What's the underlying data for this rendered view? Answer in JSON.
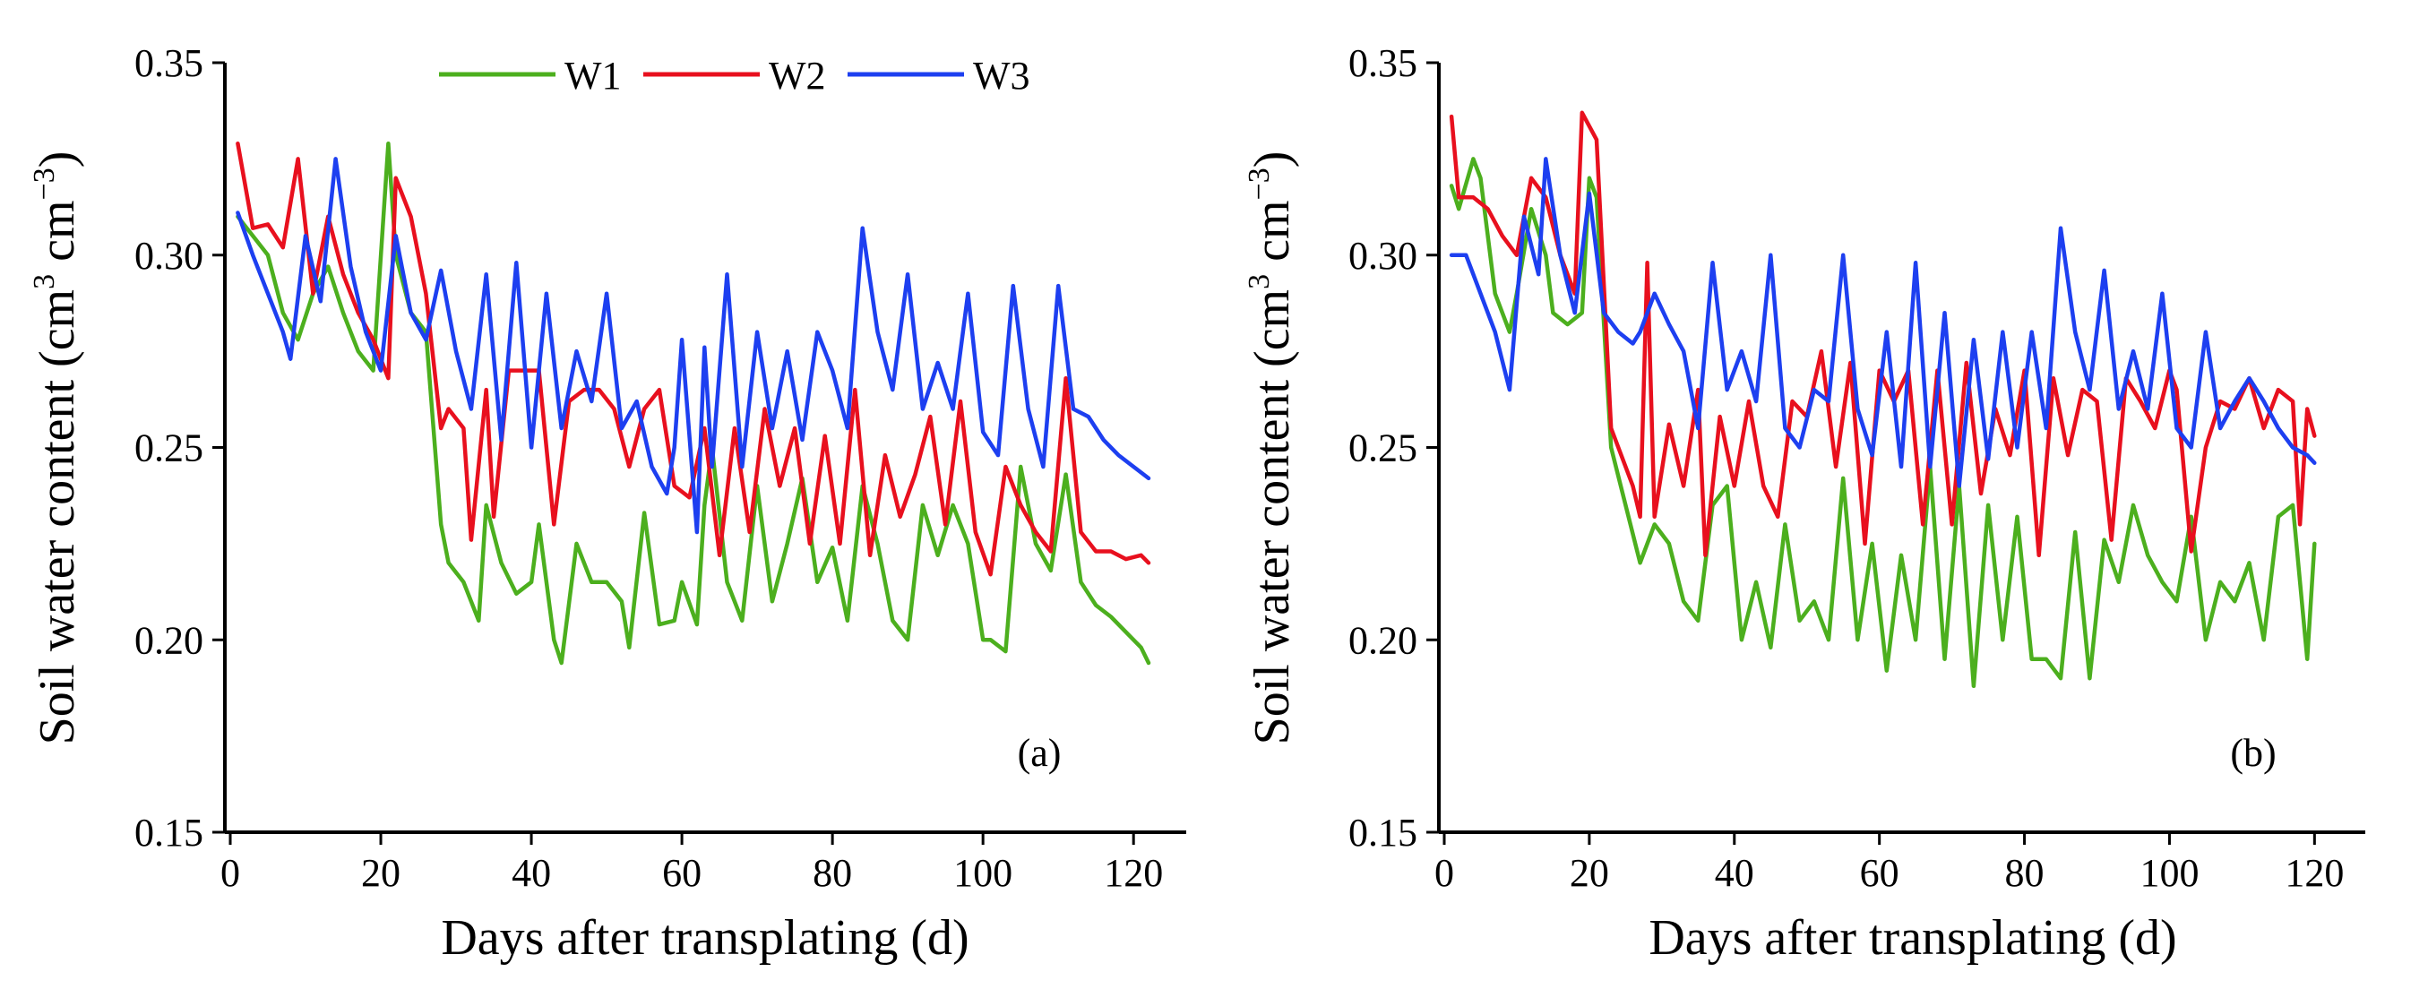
{
  "colors": {
    "W1": "#4caf1e",
    "W2": "#e8101e",
    "W3": "#1d3ff0"
  },
  "legend": [
    {
      "key": "W1",
      "label": "W1"
    },
    {
      "key": "W2",
      "label": "W2"
    },
    {
      "key": "W3",
      "label": "W3"
    }
  ],
  "chart_data": [
    {
      "type": "line",
      "panel_label": "(a)",
      "xlabel": "Days after transplating (d)",
      "ylabel_main": "Soil water content (cm",
      "ylabel_unit": "cm",
      "ylabel_sup1": "3",
      "ylabel_sup2": "−3",
      "ylabel_close": ")",
      "xlim": [
        0,
        127
      ],
      "ylim": [
        0.15,
        0.35
      ],
      "xticks": [
        0,
        20,
        40,
        60,
        80,
        100,
        120
      ],
      "xtick_labels": [
        "0",
        "20",
        "40",
        "60",
        "80",
        "100",
        "120"
      ],
      "yticks": [
        0.15,
        0.2,
        0.25,
        0.3,
        0.35
      ],
      "ytick_labels": [
        "0.15",
        "0.20",
        "0.25",
        "0.30",
        "0.35"
      ],
      "legend_position": "top-center",
      "series": [
        {
          "name": "W1",
          "x": [
            1,
            3,
            5,
            7,
            9,
            11,
            13,
            15,
            17,
            19,
            21,
            22,
            24,
            26,
            28,
            29,
            31,
            33,
            34,
            36,
            38,
            40,
            41,
            43,
            44,
            46,
            48,
            50,
            52,
            53,
            55,
            57,
            59,
            60,
            62,
            63,
            64,
            66,
            68,
            70,
            72,
            74,
            76,
            78,
            80,
            82,
            84,
            86,
            88,
            90,
            92,
            94,
            96,
            98,
            100,
            101,
            103,
            105,
            107,
            109,
            111,
            113,
            115,
            117,
            119,
            121,
            122
          ],
          "values": [
            0.31,
            0.305,
            0.3,
            0.285,
            0.278,
            0.29,
            0.297,
            0.285,
            0.275,
            0.27,
            0.329,
            0.3,
            0.285,
            0.28,
            0.23,
            0.22,
            0.215,
            0.205,
            0.235,
            0.22,
            0.212,
            0.215,
            0.23,
            0.2,
            0.194,
            0.225,
            0.215,
            0.215,
            0.21,
            0.198,
            0.233,
            0.204,
            0.205,
            0.215,
            0.204,
            0.235,
            0.25,
            0.215,
            0.205,
            0.24,
            0.21,
            0.225,
            0.242,
            0.215,
            0.224,
            0.205,
            0.24,
            0.225,
            0.205,
            0.2,
            0.235,
            0.222,
            0.235,
            0.225,
            0.2,
            0.2,
            0.197,
            0.245,
            0.225,
            0.218,
            0.243,
            0.215,
            0.209,
            0.206,
            0.202,
            0.198,
            0.194
          ]
        },
        {
          "name": "W2",
          "x": [
            1,
            3,
            5,
            7,
            9,
            11,
            13,
            15,
            17,
            19,
            21,
            22,
            24,
            26,
            28,
            29,
            31,
            32,
            34,
            35,
            37,
            39,
            41,
            43,
            45,
            47,
            49,
            51,
            53,
            55,
            57,
            59,
            61,
            63,
            65,
            67,
            69,
            71,
            73,
            75,
            77,
            79,
            81,
            83,
            85,
            87,
            89,
            91,
            93,
            95,
            97,
            99,
            101,
            103,
            105,
            107,
            109,
            111,
            113,
            115,
            117,
            119,
            121,
            122
          ],
          "values": [
            0.329,
            0.307,
            0.308,
            0.302,
            0.325,
            0.29,
            0.31,
            0.295,
            0.285,
            0.278,
            0.268,
            0.32,
            0.31,
            0.29,
            0.255,
            0.26,
            0.255,
            0.226,
            0.265,
            0.232,
            0.27,
            0.27,
            0.27,
            0.23,
            0.262,
            0.265,
            0.265,
            0.26,
            0.245,
            0.26,
            0.265,
            0.24,
            0.237,
            0.255,
            0.222,
            0.255,
            0.228,
            0.26,
            0.24,
            0.255,
            0.225,
            0.253,
            0.225,
            0.265,
            0.222,
            0.248,
            0.232,
            0.243,
            0.258,
            0.23,
            0.262,
            0.228,
            0.217,
            0.245,
            0.235,
            0.228,
            0.223,
            0.268,
            0.228,
            0.223,
            0.223,
            0.221,
            0.222,
            0.22
          ]
        },
        {
          "name": "W3",
          "x": [
            1,
            3,
            5,
            7,
            8,
            10,
            12,
            14,
            16,
            18,
            20,
            22,
            24,
            26,
            28,
            30,
            32,
            34,
            36,
            38,
            40,
            42,
            44,
            46,
            48,
            50,
            52,
            54,
            56,
            58,
            59,
            60,
            62,
            63,
            64,
            66,
            68,
            70,
            72,
            74,
            76,
            78,
            80,
            82,
            84,
            86,
            88,
            90,
            92,
            94,
            96,
            98,
            100,
            102,
            104,
            106,
            108,
            110,
            112,
            114,
            116,
            118,
            120,
            122
          ],
          "values": [
            0.311,
            0.3,
            0.29,
            0.28,
            0.273,
            0.305,
            0.288,
            0.325,
            0.297,
            0.28,
            0.27,
            0.305,
            0.285,
            0.278,
            0.296,
            0.275,
            0.26,
            0.295,
            0.252,
            0.298,
            0.25,
            0.29,
            0.255,
            0.275,
            0.262,
            0.29,
            0.255,
            0.262,
            0.245,
            0.238,
            0.25,
            0.278,
            0.228,
            0.276,
            0.245,
            0.295,
            0.245,
            0.28,
            0.255,
            0.275,
            0.252,
            0.28,
            0.27,
            0.255,
            0.307,
            0.28,
            0.265,
            0.295,
            0.26,
            0.272,
            0.26,
            0.29,
            0.254,
            0.248,
            0.292,
            0.26,
            0.245,
            0.292,
            0.26,
            0.258,
            0.252,
            0.248,
            0.245,
            0.242
          ]
        }
      ]
    },
    {
      "type": "line",
      "panel_label": "(b)",
      "xlabel": "Days after transplating (d)",
      "ylabel_main": "Soil water content (cm",
      "ylabel_unit": "cm",
      "ylabel_sup1": "3",
      "ylabel_sup2": "−3",
      "ylabel_close": ")",
      "xlim": [
        0,
        127
      ],
      "ylim": [
        0.15,
        0.35
      ],
      "xticks": [
        0,
        20,
        40,
        60,
        80,
        100,
        120
      ],
      "xtick_labels": [
        "0",
        "20",
        "40",
        "60",
        "80",
        "100",
        "120"
      ],
      "yticks": [
        0.15,
        0.2,
        0.25,
        0.3,
        0.35
      ],
      "ytick_labels": [
        "0.15",
        "0.20",
        "0.25",
        "0.30",
        "0.35"
      ],
      "series": [
        {
          "name": "W1",
          "x": [
            1,
            2,
            4,
            5,
            7,
            9,
            10,
            12,
            14,
            15,
            17,
            19,
            20,
            21,
            23,
            25,
            27,
            29,
            31,
            33,
            35,
            37,
            39,
            41,
            43,
            45,
            47,
            49,
            51,
            53,
            55,
            57,
            59,
            61,
            63,
            65,
            67,
            69,
            71,
            73,
            75,
            77,
            79,
            81,
            83,
            85,
            87,
            89,
            91,
            93,
            95,
            97,
            99,
            101,
            103,
            105,
            107,
            109,
            111,
            113,
            115,
            117,
            119,
            120
          ],
          "values": [
            0.318,
            0.312,
            0.325,
            0.32,
            0.29,
            0.28,
            0.29,
            0.312,
            0.3,
            0.285,
            0.282,
            0.285,
            0.32,
            0.315,
            0.25,
            0.235,
            0.22,
            0.23,
            0.225,
            0.21,
            0.205,
            0.235,
            0.24,
            0.2,
            0.215,
            0.198,
            0.23,
            0.205,
            0.21,
            0.2,
            0.242,
            0.2,
            0.225,
            0.192,
            0.222,
            0.2,
            0.245,
            0.195,
            0.24,
            0.188,
            0.235,
            0.2,
            0.232,
            0.195,
            0.195,
            0.19,
            0.228,
            0.19,
            0.226,
            0.215,
            0.235,
            0.222,
            0.215,
            0.21,
            0.232,
            0.2,
            0.215,
            0.21,
            0.22,
            0.2,
            0.232,
            0.235,
            0.195,
            0.225
          ]
        },
        {
          "name": "W2",
          "x": [
            1,
            2,
            4,
            6,
            8,
            10,
            12,
            14,
            16,
            18,
            19,
            21,
            23,
            24,
            26,
            27,
            28,
            29,
            31,
            33,
            35,
            36,
            38,
            40,
            42,
            44,
            46,
            48,
            50,
            52,
            54,
            56,
            58,
            60,
            62,
            64,
            66,
            68,
            70,
            72,
            74,
            76,
            78,
            80,
            82,
            84,
            86,
            88,
            90,
            92,
            94,
            96,
            98,
            100,
            101,
            103,
            105,
            107,
            109,
            111,
            113,
            115,
            117,
            118,
            119,
            120
          ],
          "values": [
            0.336,
            0.315,
            0.315,
            0.312,
            0.305,
            0.3,
            0.32,
            0.315,
            0.3,
            0.29,
            0.337,
            0.33,
            0.255,
            0.25,
            0.24,
            0.232,
            0.298,
            0.232,
            0.256,
            0.24,
            0.265,
            0.222,
            0.258,
            0.24,
            0.262,
            0.24,
            0.232,
            0.262,
            0.258,
            0.275,
            0.245,
            0.272,
            0.225,
            0.27,
            0.262,
            0.27,
            0.23,
            0.27,
            0.23,
            0.272,
            0.238,
            0.26,
            0.248,
            0.27,
            0.222,
            0.268,
            0.248,
            0.265,
            0.262,
            0.226,
            0.268,
            0.262,
            0.255,
            0.27,
            0.265,
            0.223,
            0.25,
            0.262,
            0.26,
            0.268,
            0.255,
            0.265,
            0.262,
            0.23,
            0.26,
            0.253
          ]
        },
        {
          "name": "W3",
          "x": [
            1,
            3,
            5,
            7,
            9,
            11,
            13,
            14,
            16,
            18,
            20,
            22,
            24,
            26,
            27,
            29,
            31,
            33,
            35,
            37,
            39,
            41,
            43,
            45,
            47,
            49,
            51,
            53,
            55,
            57,
            59,
            61,
            63,
            65,
            67,
            69,
            71,
            73,
            75,
            77,
            79,
            81,
            83,
            85,
            87,
            89,
            91,
            93,
            95,
            97,
            99,
            101,
            103,
            105,
            107,
            109,
            111,
            113,
            115,
            117,
            119,
            120
          ],
          "values": [
            0.3,
            0.3,
            0.29,
            0.28,
            0.265,
            0.31,
            0.295,
            0.325,
            0.3,
            0.285,
            0.316,
            0.285,
            0.28,
            0.277,
            0.28,
            0.29,
            0.282,
            0.275,
            0.255,
            0.298,
            0.265,
            0.275,
            0.262,
            0.3,
            0.255,
            0.25,
            0.265,
            0.262,
            0.3,
            0.26,
            0.248,
            0.28,
            0.245,
            0.298,
            0.245,
            0.285,
            0.24,
            0.278,
            0.247,
            0.28,
            0.25,
            0.28,
            0.255,
            0.307,
            0.28,
            0.265,
            0.296,
            0.26,
            0.275,
            0.26,
            0.29,
            0.255,
            0.25,
            0.28,
            0.255,
            0.262,
            0.268,
            0.262,
            0.255,
            0.25,
            0.248,
            0.246
          ]
        }
      ]
    }
  ]
}
